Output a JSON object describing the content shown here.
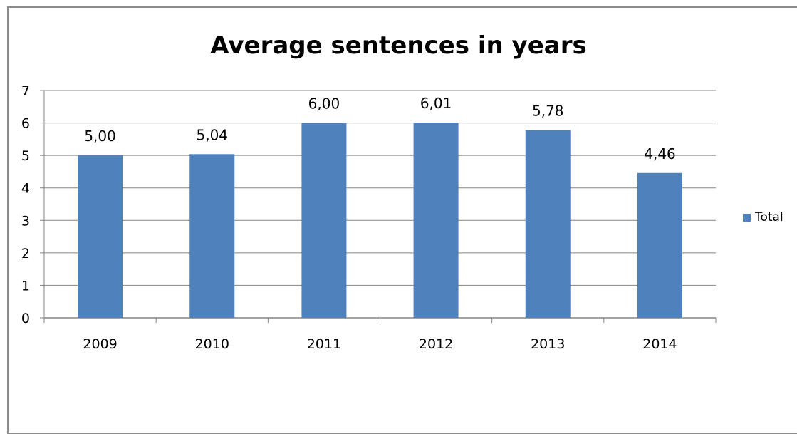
{
  "chart_data": {
    "type": "bar",
    "title": "Average sentences in years",
    "categories": [
      "2009",
      "2010",
      "2011",
      "2012",
      "2013",
      "2014"
    ],
    "series": [
      {
        "name": "Total",
        "values": [
          5.0,
          5.04,
          6.0,
          6.01,
          5.78,
          4.46
        ],
        "labels": [
          "5,00",
          "5,04",
          "6,00",
          "6,01",
          "5,78",
          "4,46"
        ]
      }
    ],
    "yticks": [
      "0",
      "1",
      "2",
      "3",
      "4",
      "5",
      "6",
      "7"
    ],
    "ylim": [
      0,
      7
    ],
    "grid": true,
    "legend": "right",
    "bar_color": "#4f81bd"
  }
}
